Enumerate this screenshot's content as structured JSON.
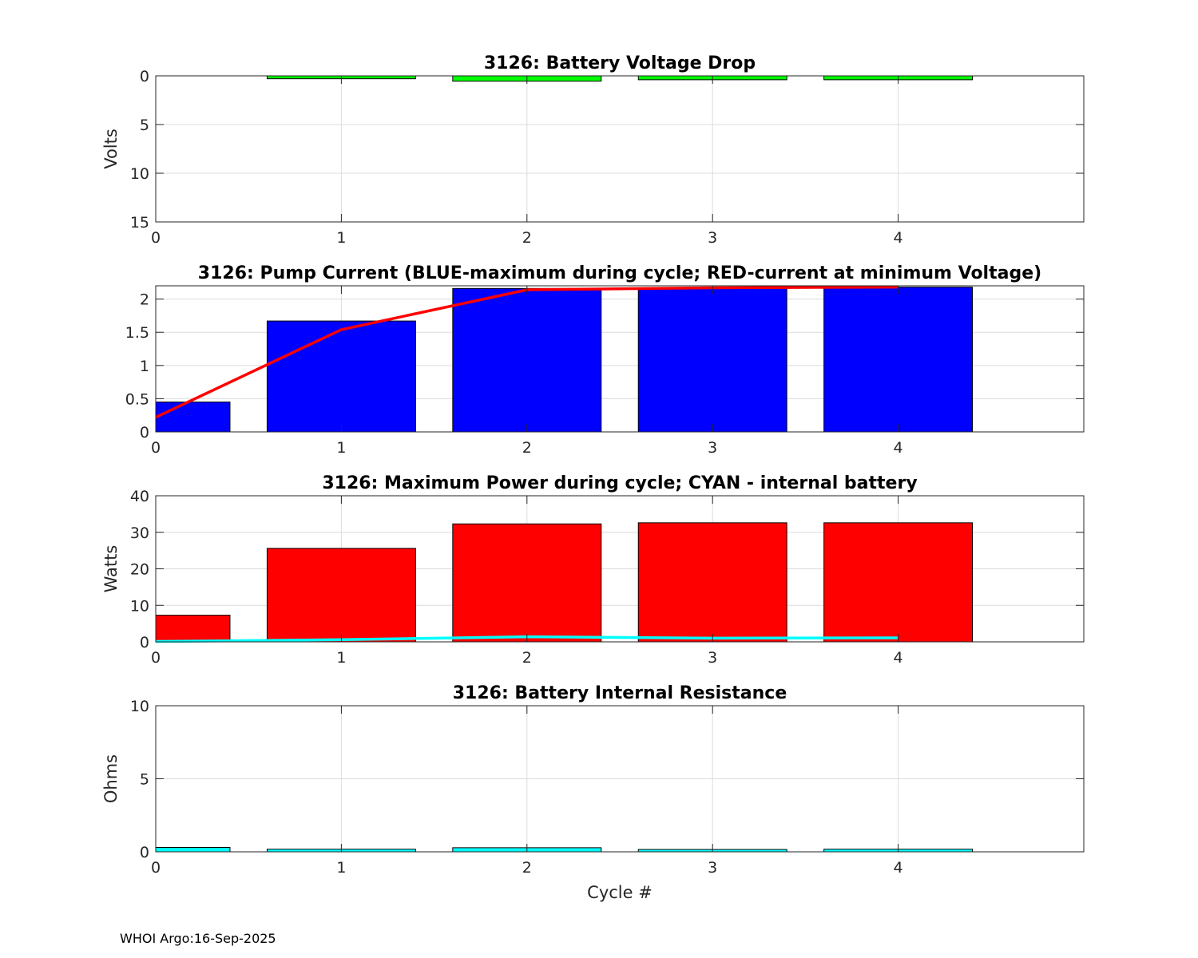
{
  "footer": "WHOI Argo:16-Sep-2025",
  "chart_data": [
    {
      "type": "bar",
      "title": "3126: Battery Voltage Drop",
      "xlabel": "",
      "ylabel": "Volts",
      "x": [
        1,
        2,
        3,
        4
      ],
      "xlim": [
        0,
        5
      ],
      "ylim": [
        0,
        15
      ],
      "y_reversed": true,
      "xticks": [
        0,
        1,
        2,
        3,
        4
      ],
      "yticks": [
        0,
        5,
        10,
        15
      ],
      "grid": true,
      "bars": [
        {
          "color": "#00ff00",
          "values": [
            0.3,
            0.55,
            0.4,
            0.4
          ]
        }
      ],
      "lines": []
    },
    {
      "type": "bar",
      "title": "3126: Pump Current (BLUE-maximum during cycle; RED-current at minimum Voltage)",
      "xlabel": "",
      "ylabel": "",
      "x": [
        0,
        1,
        2,
        3,
        4
      ],
      "xlim": [
        0,
        5
      ],
      "ylim": [
        0,
        2.2
      ],
      "y_reversed": false,
      "xticks": [
        0,
        1,
        2,
        3,
        4
      ],
      "yticks": [
        0,
        0.5,
        1,
        1.5,
        2
      ],
      "grid": true,
      "bars": [
        {
          "color": "#0000ff",
          "values": [
            0.45,
            1.67,
            2.16,
            2.17,
            2.18
          ]
        }
      ],
      "lines": [
        {
          "color": "#ff0000",
          "values": [
            0.22,
            1.54,
            2.14,
            2.17,
            2.18
          ]
        }
      ]
    },
    {
      "type": "bar",
      "title": "3126: Maximum Power during cycle; CYAN - internal battery",
      "xlabel": "",
      "ylabel": "Watts",
      "x": [
        0,
        1,
        2,
        3,
        4
      ],
      "xlim": [
        0,
        5
      ],
      "ylim": [
        0,
        40
      ],
      "y_reversed": false,
      "xticks": [
        0,
        1,
        2,
        3,
        4
      ],
      "yticks": [
        0,
        10,
        20,
        30,
        40
      ],
      "grid": true,
      "bars": [
        {
          "color": "#ff0000",
          "values": [
            7.3,
            25.6,
            32.3,
            32.6,
            32.6
          ]
        }
      ],
      "lines": [
        {
          "color": "#00ffff",
          "values": [
            0.1,
            0.6,
            1.4,
            1.0,
            1.1
          ]
        }
      ]
    },
    {
      "type": "bar",
      "title": "3126: Battery Internal Resistance",
      "xlabel": "Cycle #",
      "ylabel": "Ohms",
      "x": [
        0,
        1,
        2,
        3,
        4
      ],
      "xlim": [
        0,
        5
      ],
      "ylim": [
        0,
        10
      ],
      "y_reversed": false,
      "xticks": [
        0,
        1,
        2,
        3,
        4
      ],
      "yticks": [
        0,
        5,
        10
      ],
      "grid": true,
      "bars": [
        {
          "color": "#00ffff",
          "values": [
            0.3,
            0.18,
            0.28,
            0.16,
            0.18
          ]
        }
      ],
      "lines": []
    }
  ]
}
